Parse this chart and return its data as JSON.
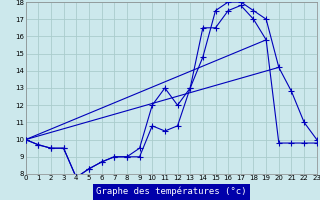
{
  "title": "Graphe des températures (°c)",
  "background_color": "#cce8ec",
  "grid_color": "#aacccc",
  "line_color": "#0000bb",
  "label_bg": "#0000aa",
  "label_fg": "#ffffff",
  "xlim": [
    0,
    23
  ],
  "ylim": [
    8,
    18
  ],
  "yticks": [
    8,
    9,
    10,
    11,
    12,
    13,
    14,
    15,
    16,
    17,
    18
  ],
  "xticks": [
    0,
    1,
    2,
    3,
    4,
    5,
    6,
    7,
    8,
    9,
    10,
    11,
    12,
    13,
    14,
    15,
    16,
    17,
    18,
    19,
    20,
    21,
    22,
    23
  ],
  "series1_x": [
    0,
    1,
    2,
    3,
    4,
    4,
    5,
    6,
    7,
    8,
    9,
    10,
    11,
    12,
    13,
    14,
    15,
    16,
    17,
    18,
    19,
    20,
    21,
    22,
    23
  ],
  "series1_y": [
    10,
    9.7,
    9.5,
    9.5,
    7.8,
    7.8,
    8.3,
    8.7,
    9,
    9,
    9,
    10.8,
    10.5,
    10.8,
    13,
    14.8,
    17.5,
    18,
    18,
    17.5,
    17,
    14.2,
    12.8,
    11,
    10
  ],
  "series2_x": [
    0,
    1,
    2,
    3,
    4,
    5,
    6,
    7,
    8,
    9,
    10,
    11,
    12,
    13,
    14,
    15,
    16,
    17,
    18,
    19,
    20,
    21,
    22,
    23
  ],
  "series2_y": [
    10,
    9.7,
    9.5,
    9.5,
    7.8,
    8.3,
    8.7,
    9,
    9,
    9.5,
    12,
    13,
    12,
    13,
    16.5,
    16.5,
    17.5,
    17.8,
    17,
    15.8,
    9.8,
    9.8,
    9.8,
    9.8
  ],
  "series3_x": [
    0,
    19
  ],
  "series3_y": [
    10,
    15.8
  ],
  "series4_x": [
    0,
    20
  ],
  "series4_y": [
    10,
    14.2
  ]
}
